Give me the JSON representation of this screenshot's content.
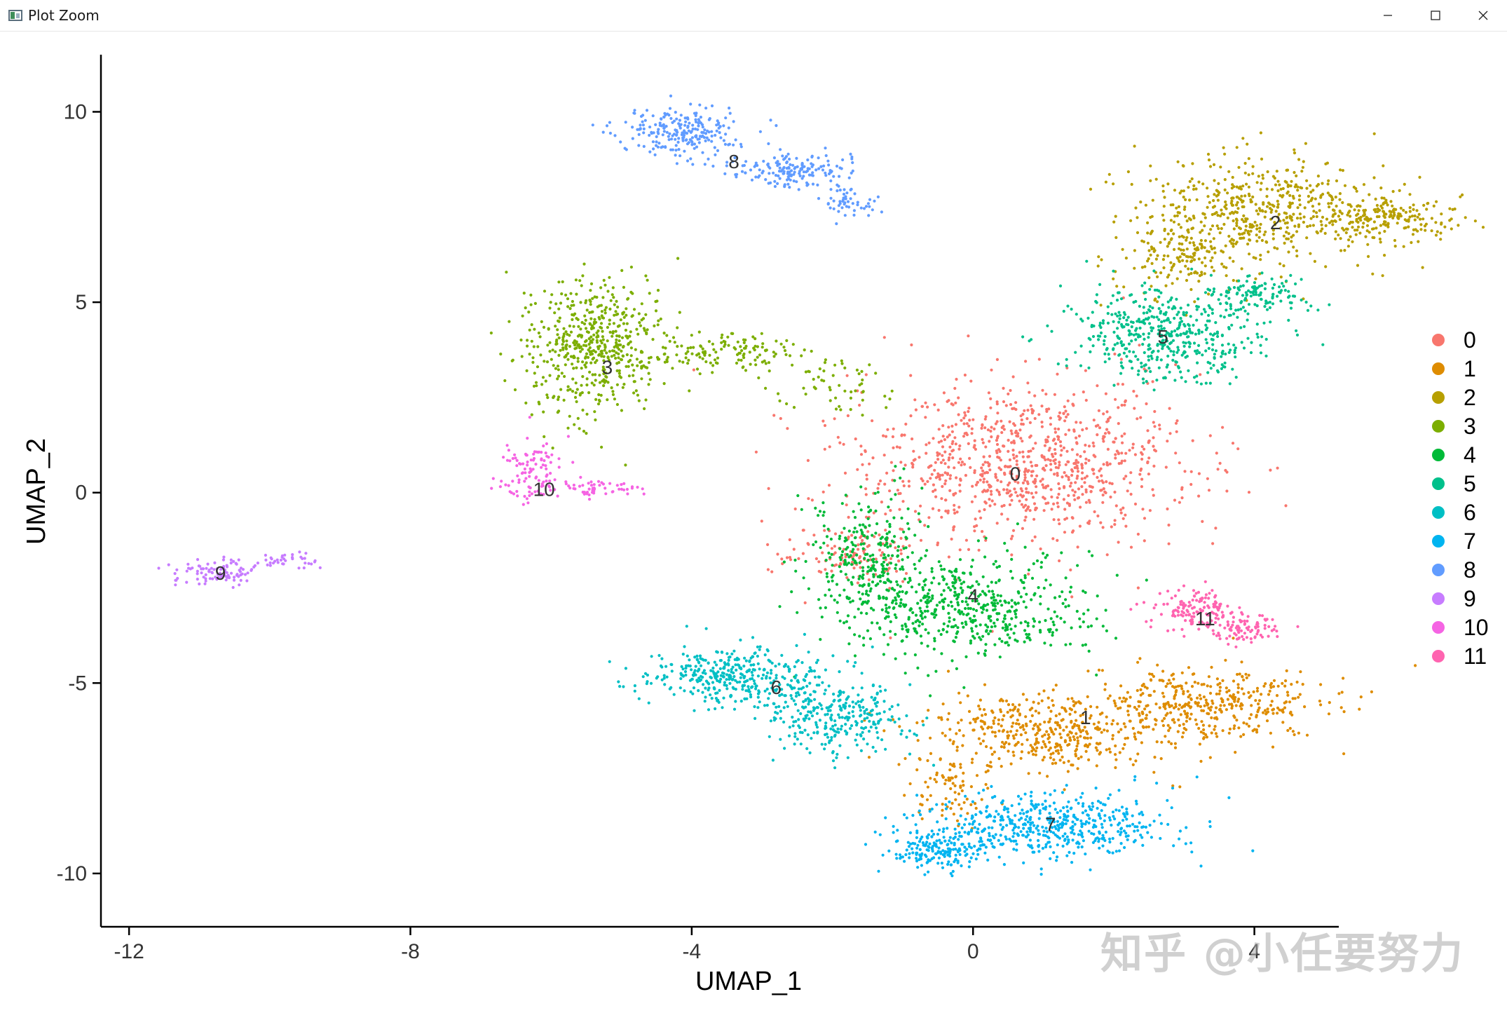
{
  "window": {
    "title": "Plot Zoom",
    "controls": {
      "minimize_icon": "minimize-icon",
      "maximize_icon": "maximize-icon",
      "close_icon": "close-icon"
    }
  },
  "watermark": "知乎 @小任要努力",
  "chart_data": {
    "type": "scatter",
    "title": "",
    "xlabel": "UMAP_1",
    "ylabel": "UMAP_2",
    "xlim": [
      -12.4,
      5.2
    ],
    "ylim": [
      -11.4,
      11.5
    ],
    "xticks": [
      -12,
      -8,
      -4,
      0,
      4
    ],
    "yticks": [
      -10,
      -5,
      0,
      5,
      10
    ],
    "grid": false,
    "legend_position": "right",
    "colors": [
      "#F8766D",
      "#DE8C00",
      "#B79F00",
      "#7CAE00",
      "#00BA38",
      "#00C08B",
      "#00BFC4",
      "#00B4F0",
      "#619CFF",
      "#C77CFF",
      "#F564E3",
      "#FF64B0"
    ],
    "series": [
      {
        "name": "0",
        "label_pos": [
          0.6,
          0.5
        ],
        "approx_cells": 2400,
        "regions": [
          {
            "cx": 0.7,
            "cy": 0.8,
            "rx": 2.2,
            "ry": 2.0,
            "w": 1
          },
          {
            "cx": -1.7,
            "cy": -1.7,
            "rx": 0.9,
            "ry": 0.6,
            "w": 0.12
          }
        ]
      },
      {
        "name": "1",
        "label_pos": [
          1.6,
          -5.9
        ],
        "approx_cells": 2000,
        "regions": [
          {
            "cx": 1.0,
            "cy": -6.3,
            "rx": 1.7,
            "ry": 0.9,
            "w": 0.8
          },
          {
            "cx": 3.3,
            "cy": -5.5,
            "rx": 1.5,
            "ry": 0.8,
            "w": 0.7
          },
          {
            "cx": -0.3,
            "cy": -7.8,
            "rx": 0.5,
            "ry": 0.8,
            "w": 0.15
          }
        ]
      },
      {
        "name": "2",
        "label_pos": [
          4.3,
          7.1
        ],
        "approx_cells": 1900,
        "regions": [
          {
            "cx": 4.1,
            "cy": 7.4,
            "rx": 1.6,
            "ry": 1.3,
            "w": 0.8
          },
          {
            "cx": 5.9,
            "cy": 7.2,
            "rx": 1.0,
            "ry": 0.5,
            "w": 0.3
          },
          {
            "cx": 2.9,
            "cy": 6.2,
            "rx": 0.8,
            "ry": 1.0,
            "w": 0.25
          }
        ]
      },
      {
        "name": "3",
        "label_pos": [
          -5.2,
          3.3
        ],
        "approx_cells": 1600,
        "regions": [
          {
            "cx": -5.4,
            "cy": 3.9,
            "rx": 0.9,
            "ry": 1.6,
            "w": 0.85
          },
          {
            "cx": -3.6,
            "cy": 3.7,
            "rx": 1.0,
            "ry": 0.5,
            "w": 0.22
          },
          {
            "cx": -1.9,
            "cy": 2.8,
            "rx": 0.7,
            "ry": 0.7,
            "w": 0.13
          }
        ]
      },
      {
        "name": "4",
        "label_pos": [
          0.0,
          -2.7
        ],
        "approx_cells": 1800,
        "regions": [
          {
            "cx": 0.0,
            "cy": -3.0,
            "rx": 1.6,
            "ry": 1.2,
            "w": 0.8
          },
          {
            "cx": -1.5,
            "cy": -1.8,
            "rx": 0.7,
            "ry": 1.6,
            "w": 0.4
          }
        ]
      },
      {
        "name": "5",
        "label_pos": [
          2.7,
          4.1
        ],
        "approx_cells": 1300,
        "regions": [
          {
            "cx": 2.8,
            "cy": 4.2,
            "rx": 1.3,
            "ry": 1.1,
            "w": 0.8
          },
          {
            "cx": 4.1,
            "cy": 5.2,
            "rx": 0.7,
            "ry": 0.4,
            "w": 0.2
          }
        ]
      },
      {
        "name": "6",
        "label_pos": [
          -2.8,
          -5.1
        ],
        "approx_cells": 1500,
        "regions": [
          {
            "cx": -3.3,
            "cy": -4.8,
            "rx": 1.2,
            "ry": 0.7,
            "w": 0.6
          },
          {
            "cx": -1.9,
            "cy": -5.9,
            "rx": 0.9,
            "ry": 0.8,
            "w": 0.45
          }
        ]
      },
      {
        "name": "7",
        "label_pos": [
          1.1,
          -8.7
        ],
        "approx_cells": 1500,
        "regions": [
          {
            "cx": 1.1,
            "cy": -8.7,
            "rx": 1.6,
            "ry": 0.8,
            "w": 0.7
          },
          {
            "cx": -0.5,
            "cy": -9.4,
            "rx": 0.6,
            "ry": 0.5,
            "w": 0.25
          }
        ]
      },
      {
        "name": "8",
        "label_pos": [
          -3.4,
          8.7
        ],
        "approx_cells": 1000,
        "regions": [
          {
            "cx": -4.2,
            "cy": 9.5,
            "rx": 0.8,
            "ry": 0.6,
            "w": 0.5
          },
          {
            "cx": -2.6,
            "cy": 8.5,
            "rx": 0.8,
            "ry": 0.4,
            "w": 0.35
          },
          {
            "cx": -1.8,
            "cy": 7.6,
            "rx": 0.4,
            "ry": 0.4,
            "w": 0.12
          }
        ]
      },
      {
        "name": "9",
        "label_pos": [
          -10.7,
          -2.1
        ],
        "approx_cells": 300,
        "regions": [
          {
            "cx": -10.8,
            "cy": -2.1,
            "rx": 0.5,
            "ry": 0.3,
            "w": 0.7
          },
          {
            "cx": -9.8,
            "cy": -1.8,
            "rx": 0.5,
            "ry": 0.2,
            "w": 0.3
          }
        ]
      },
      {
        "name": "10",
        "label_pos": [
          -6.1,
          0.1
        ],
        "approx_cells": 350,
        "regions": [
          {
            "cx": -6.3,
            "cy": 0.6,
            "rx": 0.4,
            "ry": 0.8,
            "w": 0.6
          },
          {
            "cx": -5.4,
            "cy": 0.1,
            "rx": 0.6,
            "ry": 0.2,
            "w": 0.4
          }
        ]
      },
      {
        "name": "11",
        "label_pos": [
          3.3,
          -3.3
        ],
        "approx_cells": 500,
        "regions": [
          {
            "cx": 3.2,
            "cy": -3.1,
            "rx": 0.6,
            "ry": 0.5,
            "w": 0.6
          },
          {
            "cx": 3.9,
            "cy": -3.6,
            "rx": 0.4,
            "ry": 0.4,
            "w": 0.4
          }
        ]
      }
    ]
  }
}
